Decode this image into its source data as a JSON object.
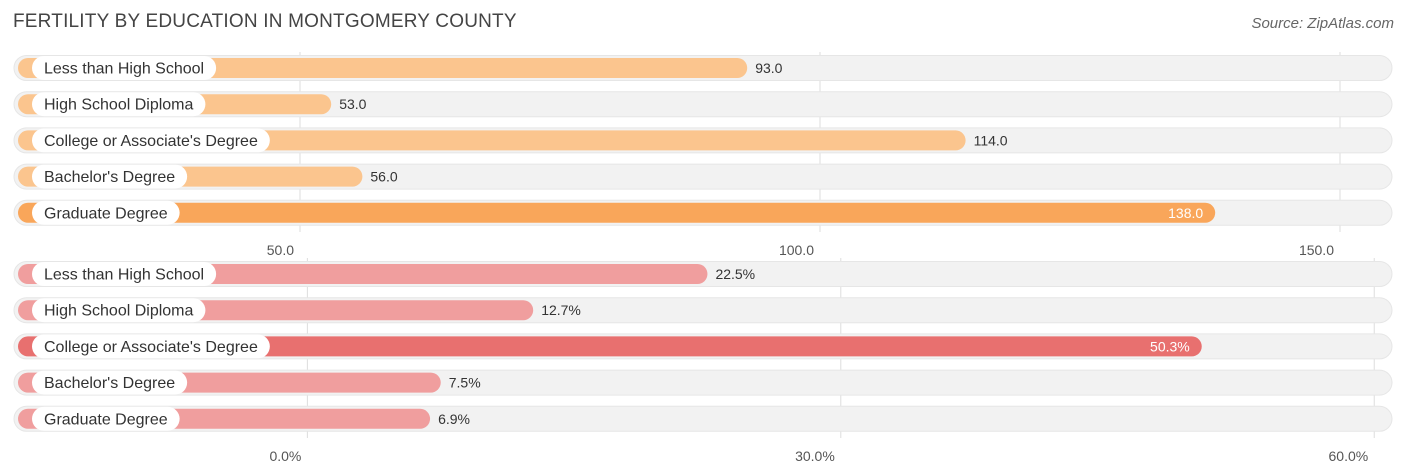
{
  "title": "FERTILITY BY EDUCATION IN MONTGOMERY COUNTY",
  "source": "Source: ZipAtlas.com",
  "chart_data": [
    {
      "type": "bar",
      "orientation": "horizontal",
      "categories": [
        "Less than High School",
        "High School Diploma",
        "College or Associate's Degree",
        "Bachelor's Degree",
        "Graduate Degree"
      ],
      "values": [
        93.0,
        53.0,
        114.0,
        56.0,
        138.0
      ],
      "value_labels": [
        "93.0",
        "53.0",
        "114.0",
        "56.0",
        "138.0"
      ],
      "ticks": [
        50.0,
        100.0,
        150.0
      ],
      "tick_labels": [
        "50.0",
        "100.0",
        "150.0"
      ],
      "xlim": [
        22.5,
        155.0
      ],
      "colors": {
        "normal": "#fbc58e",
        "max": "#f9a65a"
      },
      "grid": true
    },
    {
      "type": "bar",
      "orientation": "horizontal",
      "categories": [
        "Less than High School",
        "High School Diploma",
        "College or Associate's Degree",
        "Bachelor's Degree",
        "Graduate Degree"
      ],
      "values": [
        22.5,
        12.7,
        50.3,
        7.5,
        6.9
      ],
      "value_labels": [
        "22.5%",
        "12.7%",
        "50.3%",
        "7.5%",
        "6.9%"
      ],
      "ticks": [
        0.0,
        30.0,
        60.0
      ],
      "tick_labels": [
        "0.0%",
        "30.0%",
        "60.0%"
      ],
      "xlim": [
        -16.5,
        61.0
      ],
      "colors": {
        "normal": "#f09e9e",
        "max": "#e8706f"
      },
      "grid": true
    }
  ]
}
